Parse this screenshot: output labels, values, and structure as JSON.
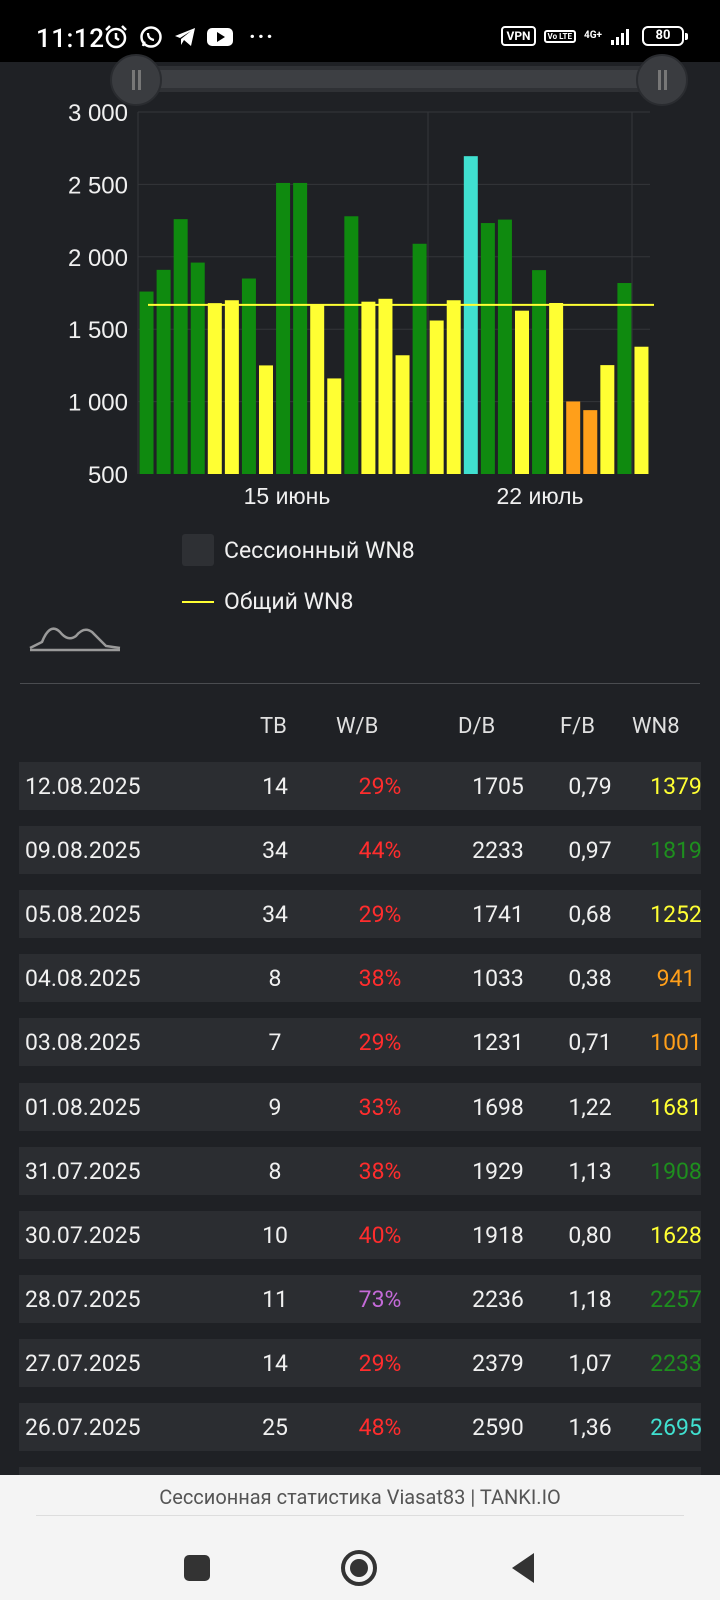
{
  "status_bar": {
    "time": "11:12",
    "vpn": "VPN",
    "volte": "Vo LTE",
    "network": "4G+",
    "battery": "80",
    "more": "···"
  },
  "chart_data": {
    "type": "bar",
    "ylim": [
      500,
      3000
    ],
    "yticks": [
      "3 000",
      "2 500",
      "2 000",
      "1 500",
      "1 000",
      "500"
    ],
    "xtick_labels": [
      "15 июнь",
      "22 июль"
    ],
    "values": [
      1760,
      1910,
      2260,
      1960,
      1680,
      1700,
      1850,
      1250,
      2510,
      2510,
      1670,
      1160,
      2280,
      1690,
      1710,
      1320,
      2090,
      1560,
      1700,
      2695,
      2233,
      2257,
      1628,
      1908,
      1681,
      1001,
      941,
      1252,
      1819,
      1379
    ],
    "colors": [
      "#0f8a0f",
      "#0f8a0f",
      "#0f8a0f",
      "#0f8a0f",
      "#ffff33",
      "#ffff33",
      "#0f8a0f",
      "#ffff33",
      "#0f8a0f",
      "#0f8a0f",
      "#ffff33",
      "#ffff33",
      "#0f8a0f",
      "#ffff33",
      "#ffff33",
      "#ffff33",
      "#0f8a0f",
      "#ffff33",
      "#ffff33",
      "#40e0d0",
      "#0f8a0f",
      "#0f8a0f",
      "#ffff33",
      "#0f8a0f",
      "#ffff33",
      "#ff9f1a",
      "#ff9f1a",
      "#ffff33",
      "#0f8a0f",
      "#ffff33"
    ],
    "overall_wn8": 1668,
    "legend": [
      "Сессионный WN8",
      "Общий WN8"
    ],
    "grid": true
  },
  "table": {
    "headers": {
      "tb": "ТВ",
      "wb": "W/B",
      "db": "D/B",
      "fb": "F/B",
      "wn8": "WN8"
    },
    "rows": [
      {
        "date": "12.08.2025",
        "tb": "14",
        "wb": "29%",
        "db": "1705",
        "fb": "0,79",
        "wn8": "1379",
        "wb_color": "#ff2d2d",
        "wn8_color": "#ffff33"
      },
      {
        "date": "09.08.2025",
        "tb": "34",
        "wb": "44%",
        "db": "2233",
        "fb": "0,97",
        "wn8": "1819",
        "wb_color": "#ff2d2d",
        "wn8_color": "#1e8f1e"
      },
      {
        "date": "05.08.2025",
        "tb": "34",
        "wb": "29%",
        "db": "1741",
        "fb": "0,68",
        "wn8": "1252",
        "wb_color": "#ff2d2d",
        "wn8_color": "#ffff33"
      },
      {
        "date": "04.08.2025",
        "tb": "8",
        "wb": "38%",
        "db": "1033",
        "fb": "0,38",
        "wn8": "941",
        "wb_color": "#ff2d2d",
        "wn8_color": "#ff9f1a"
      },
      {
        "date": "03.08.2025",
        "tb": "7",
        "wb": "29%",
        "db": "1231",
        "fb": "0,71",
        "wn8": "1001",
        "wb_color": "#ff2d2d",
        "wn8_color": "#ff9f1a"
      },
      {
        "date": "01.08.2025",
        "tb": "9",
        "wb": "33%",
        "db": "1698",
        "fb": "1,22",
        "wn8": "1681",
        "wb_color": "#ff2d2d",
        "wn8_color": "#ffff33"
      },
      {
        "date": "31.07.2025",
        "tb": "8",
        "wb": "38%",
        "db": "1929",
        "fb": "1,13",
        "wn8": "1908",
        "wb_color": "#ff2d2d",
        "wn8_color": "#1e8f1e"
      },
      {
        "date": "30.07.2025",
        "tb": "10",
        "wb": "40%",
        "db": "1918",
        "fb": "0,80",
        "wn8": "1628",
        "wb_color": "#ff2d2d",
        "wn8_color": "#ffff33"
      },
      {
        "date": "28.07.2025",
        "tb": "11",
        "wb": "73%",
        "db": "2236",
        "fb": "1,18",
        "wn8": "2257",
        "wb_color": "#c46ad8",
        "wn8_color": "#1e8f1e"
      },
      {
        "date": "27.07.2025",
        "tb": "14",
        "wb": "29%",
        "db": "2379",
        "fb": "1,07",
        "wn8": "2233",
        "wb_color": "#ff2d2d",
        "wn8_color": "#1e8f1e"
      },
      {
        "date": "26.07.2025",
        "tb": "25",
        "wb": "48%",
        "db": "2590",
        "fb": "1,36",
        "wn8": "2695",
        "wb_color": "#ff2d2d",
        "wn8_color": "#40e0d0"
      }
    ]
  },
  "footer": {
    "title": "Сессионная статистика Viasat83 | TANKI.IO"
  },
  "nav": {
    "recent": "recent-apps",
    "home": "home",
    "back": "back"
  }
}
